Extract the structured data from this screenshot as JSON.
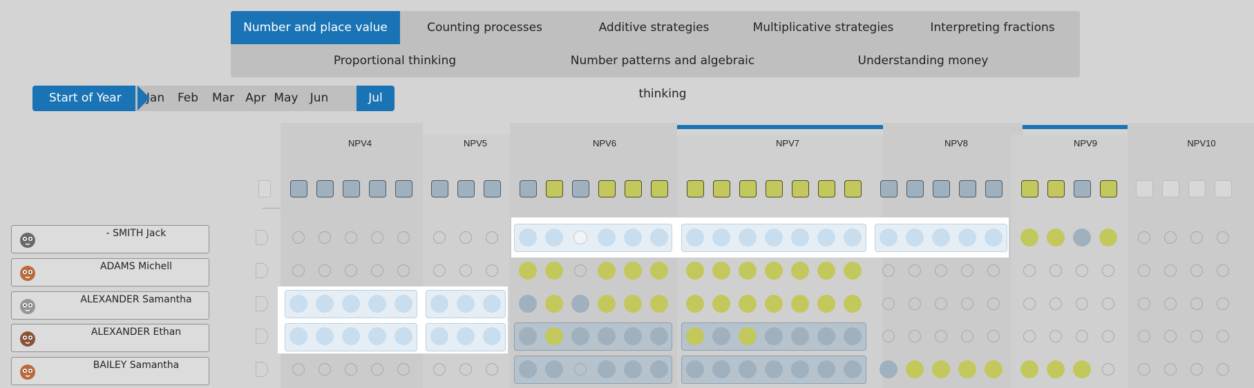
{
  "tabs": [
    {
      "label": "Number and place value",
      "active": true
    },
    {
      "label": "Counting processes",
      "active": false
    },
    {
      "label": "Additive strategies",
      "active": false
    },
    {
      "label": "Multiplicative strategies",
      "active": false
    },
    {
      "label": "Interpreting fractions",
      "active": false
    },
    {
      "label": "Proportional thinking",
      "active": false
    },
    {
      "label": "Number patterns and algebraic thinking",
      "active": false
    },
    {
      "label": "Understanding money",
      "active": false
    }
  ],
  "timeline": {
    "start_label": "Start of Year",
    "months": [
      "Jan",
      "Feb",
      "Mar",
      "Apr",
      "May",
      "Jun",
      "Jul"
    ],
    "active_month": "Jul"
  },
  "columns": [
    {
      "label": "NPV4",
      "count": 5,
      "squares": [
        "grey",
        "grey",
        "grey",
        "grey",
        "grey"
      ]
    },
    {
      "label": "NPV5",
      "count": 3,
      "squares": [
        "grey",
        "grey",
        "grey"
      ]
    },
    {
      "label": "NPV6",
      "count": 6,
      "squares": [
        "grey",
        "green",
        "grey",
        "green",
        "green",
        "green"
      ]
    },
    {
      "label": "NPV7",
      "count": 7,
      "squares": [
        "green",
        "green",
        "green",
        "green",
        "green",
        "green",
        "green"
      ]
    },
    {
      "label": "NPV8",
      "count": 5,
      "squares": [
        "grey",
        "grey",
        "grey",
        "grey",
        "grey"
      ]
    },
    {
      "label": "NPV9",
      "count": 4,
      "squares": [
        "green",
        "green",
        "grey",
        "green"
      ]
    },
    {
      "label": "NPV10",
      "count": 4,
      "squares": [
        "empty",
        "empty",
        "empty",
        "empty"
      ]
    }
  ],
  "students": [
    {
      "name": "- SMITH Jack",
      "avatar": "zebra-avatar",
      "cells": [
        [
          "o",
          "o",
          "o",
          "o",
          "o"
        ],
        [
          "o",
          "o",
          "o"
        ],
        [
          "L",
          "L",
          "E",
          "L",
          "L",
          "L"
        ],
        [
          "L",
          "L",
          "L",
          "L",
          "L",
          "L",
          "L"
        ],
        [
          "L",
          "L",
          "L",
          "L",
          "L"
        ],
        [
          "g",
          "g",
          "b",
          "g"
        ],
        [
          "o",
          "o",
          "o",
          "o"
        ]
      ]
    },
    {
      "name": "ADAMS Michell",
      "avatar": "owl-avatar",
      "cells": [
        [
          "o",
          "o",
          "o",
          "o",
          "o"
        ],
        [
          "o",
          "o",
          "o"
        ],
        [
          "g",
          "g",
          "o",
          "g",
          "g",
          "g"
        ],
        [
          "g",
          "g",
          "g",
          "g",
          "g",
          "g",
          "g"
        ],
        [
          "o",
          "o",
          "o",
          "o",
          "o"
        ],
        [
          "o",
          "o",
          "o",
          "o"
        ],
        [
          "o",
          "o",
          "o",
          "o"
        ]
      ]
    },
    {
      "name": "ALEXANDER Samantha",
      "avatar": "rabbit-avatar",
      "cells": [
        [
          "L",
          "L",
          "L",
          "L",
          "L"
        ],
        [
          "L",
          "L",
          "L"
        ],
        [
          "b",
          "g",
          "b",
          "g",
          "g",
          "g"
        ],
        [
          "g",
          "g",
          "g",
          "g",
          "g",
          "g",
          "g"
        ],
        [
          "o",
          "o",
          "o",
          "o",
          "o"
        ],
        [
          "o",
          "o",
          "o",
          "o"
        ],
        [
          "o",
          "o",
          "o",
          "o"
        ]
      ]
    },
    {
      "name": "ALEXANDER Ethan",
      "avatar": "monkey-avatar",
      "cells": [
        [
          "L",
          "L",
          "L",
          "L",
          "L"
        ],
        [
          "L",
          "L",
          "L"
        ],
        [
          "b",
          "g",
          "b",
          "b",
          "b",
          "b"
        ],
        [
          "g",
          "b",
          "g",
          "b",
          "b",
          "b",
          "b"
        ],
        [
          "o",
          "o",
          "o",
          "o",
          "o"
        ],
        [
          "o",
          "o",
          "o",
          "o"
        ],
        [
          "o",
          "o",
          "o",
          "o"
        ]
      ]
    },
    {
      "name": "BAILEY Samantha",
      "avatar": "owl-avatar",
      "cells": [
        [
          "o",
          "o",
          "o",
          "o",
          "o"
        ],
        [
          "o",
          "o",
          "o"
        ],
        [
          "b",
          "b",
          "o",
          "b",
          "b",
          "b"
        ],
        [
          "b",
          "b",
          "b",
          "b",
          "b",
          "b",
          "b"
        ],
        [
          "b",
          "g",
          "g",
          "g",
          "g"
        ],
        [
          "g",
          "g",
          "g",
          "o"
        ],
        [
          "o",
          "o",
          "o",
          "o"
        ]
      ]
    }
  ]
}
